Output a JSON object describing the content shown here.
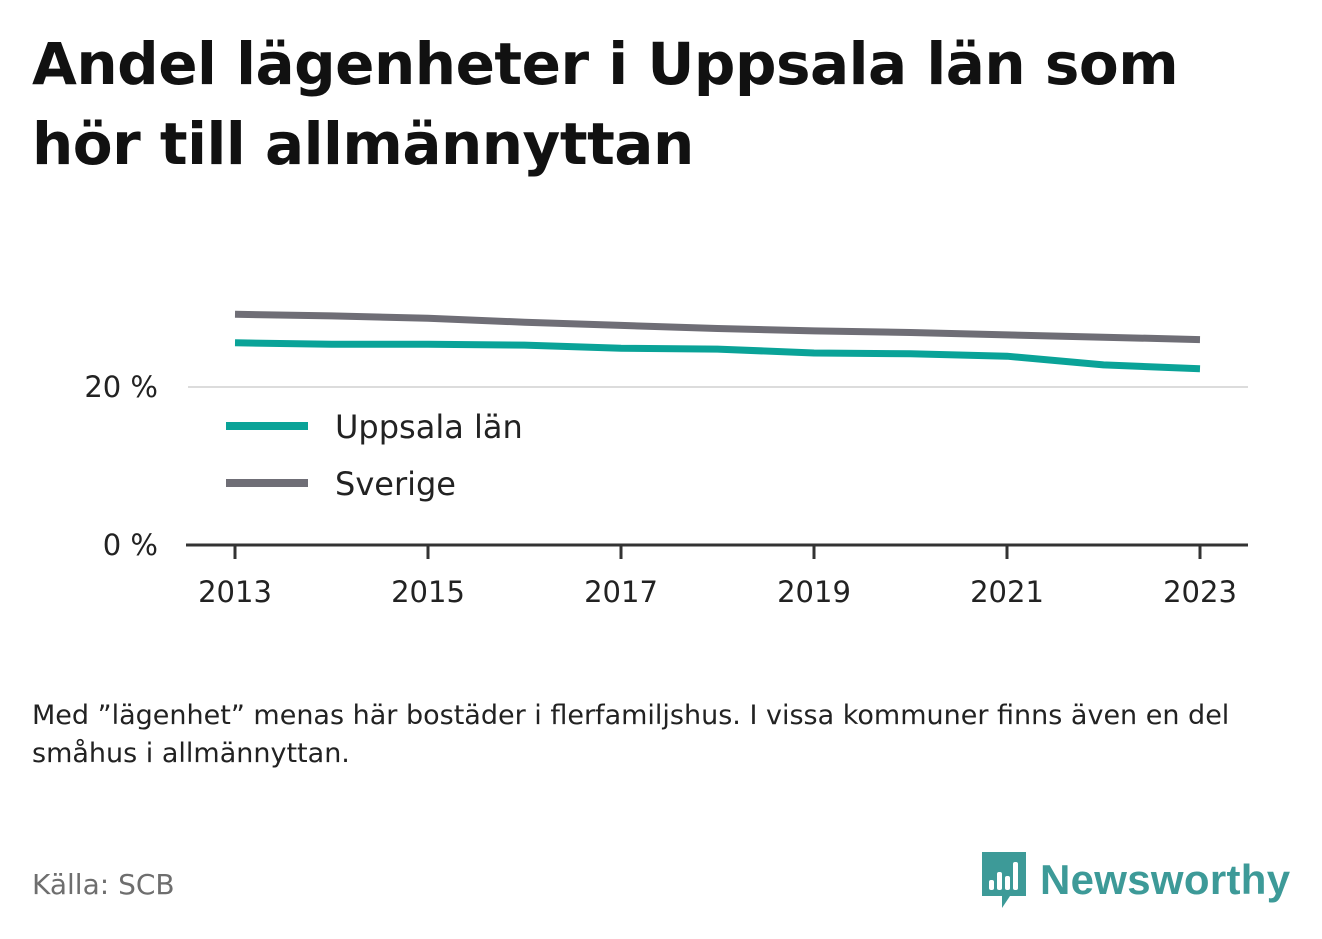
{
  "title": "Andel lägenheter i Uppsala län som hör till allmännyttan",
  "note": "Med ”lägenhet” menas här bostäder i flerfamiljshus. I vissa kommuner finns även en del småhus i allmännyttan.",
  "source": "Källa: SCB",
  "brand": {
    "name": "Newsworthy",
    "color": "#3d9a98",
    "icon": "bar-chart-speech-bubble-icon"
  },
  "chart_data": {
    "type": "line",
    "x": [
      2013,
      2014,
      2015,
      2016,
      2017,
      2018,
      2019,
      2020,
      2021,
      2022,
      2023
    ],
    "xticks": [
      "2013",
      "2015",
      "2017",
      "2019",
      "2021",
      "2023"
    ],
    "xtick_values": [
      2013,
      2015,
      2017,
      2019,
      2021,
      2023
    ],
    "yticks": [
      "0 %",
      "20 %"
    ],
    "ytick_values": [
      0,
      20
    ],
    "ylim": [
      0,
      30
    ],
    "grid": "horizontal",
    "legend_position": "bottom-left",
    "series": [
      {
        "name": "Uppsala län",
        "color": "#0aa398",
        "values": [
          25.6,
          25.4,
          25.4,
          25.3,
          24.9,
          24.8,
          24.3,
          24.2,
          23.9,
          22.8,
          22.3
        ]
      },
      {
        "name": "Sverige",
        "color": "#6f6e76",
        "values": [
          29.2,
          29.0,
          28.7,
          28.2,
          27.8,
          27.4,
          27.1,
          26.9,
          26.6,
          26.3,
          26.0
        ]
      }
    ]
  }
}
